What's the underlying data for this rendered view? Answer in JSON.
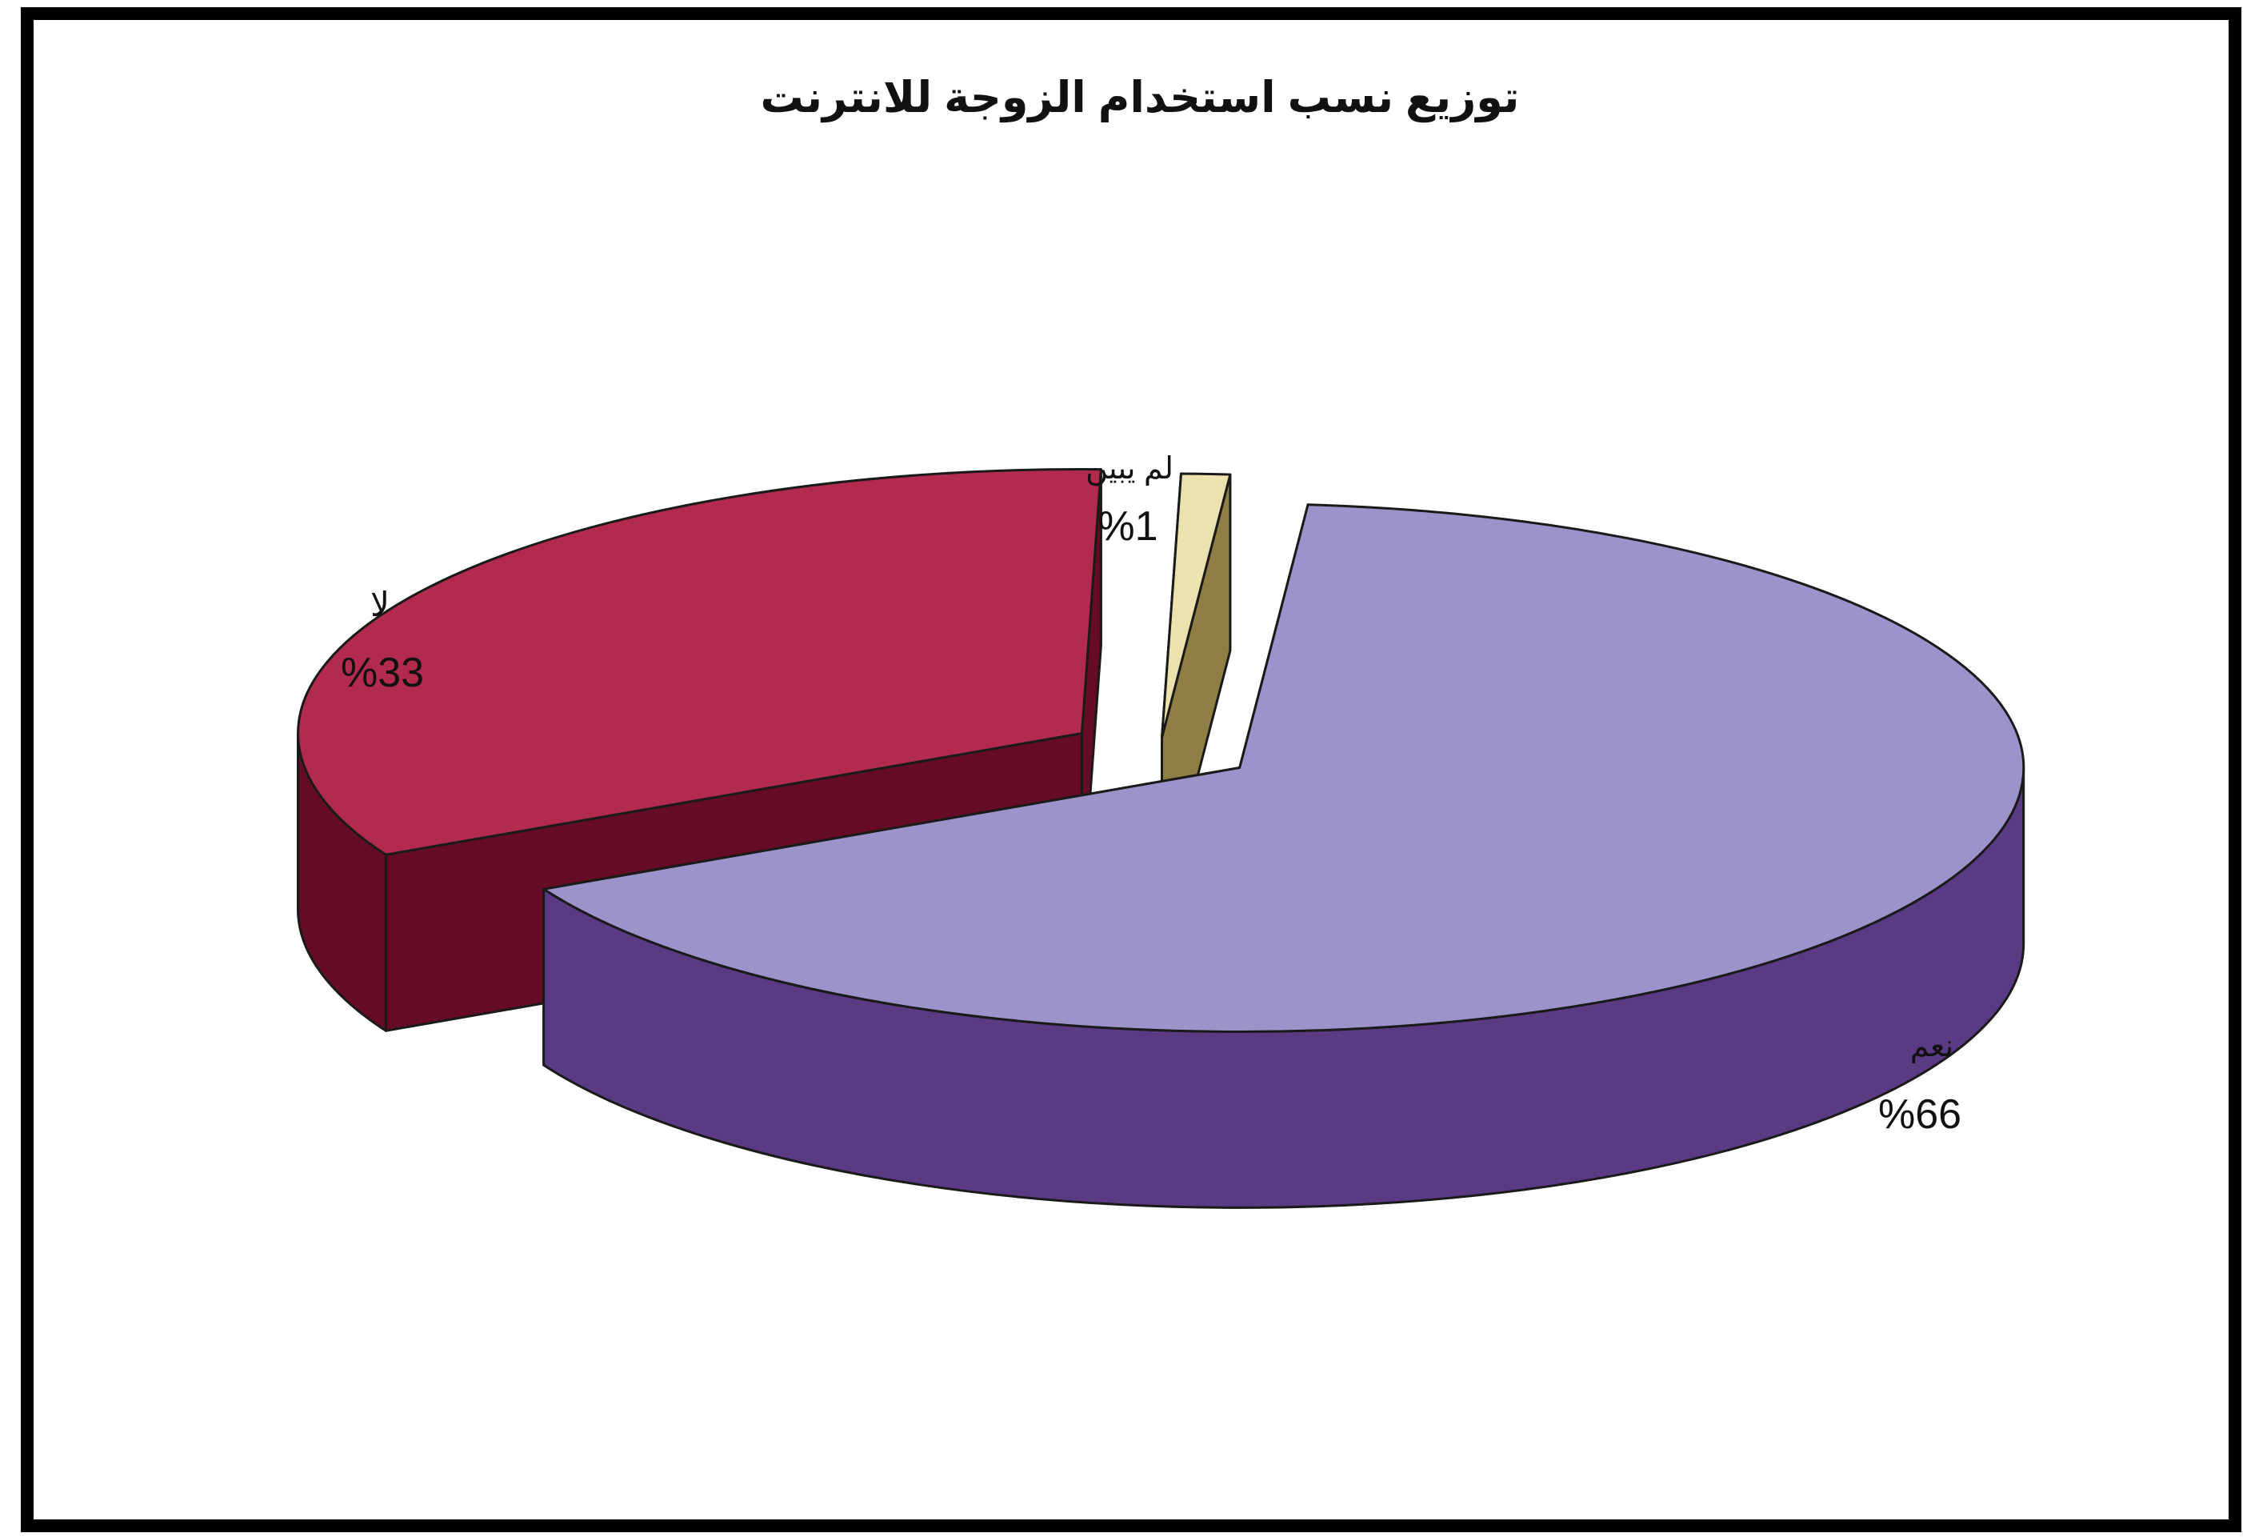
{
  "chart_data": {
    "type": "pie",
    "title": "توزيع نسب استخدام الزوجة للانترنت",
    "categories": [
      "نعم",
      "لا",
      "لم يبين"
    ],
    "values": [
      66,
      33,
      1
    ],
    "value_labels": [
      "%66",
      "%33",
      "%1"
    ],
    "pie_style": "3d-exploded",
    "legend": "none"
  },
  "colors": {
    "slice_top": [
      "#9b93c9",
      "#b22a4e",
      "#ece2ae"
    ],
    "slice_side": [
      "#5a3a82",
      "#660b25",
      "#8f7f45"
    ],
    "frame_border": "#000000",
    "text": "#111111"
  }
}
